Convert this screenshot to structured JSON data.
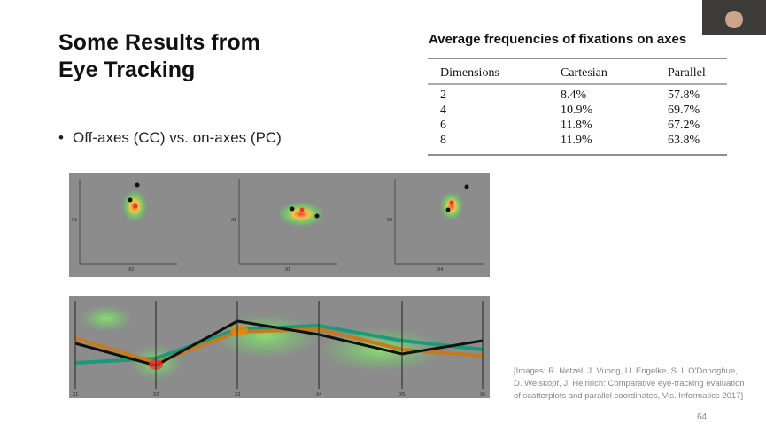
{
  "slide": {
    "title": [
      "Some Results from",
      "Eye Tracking"
    ],
    "bullets": [
      "Off-axes (CC) vs. on-axes (PC)"
    ],
    "table": {
      "caption": "Average frequencies of fixations on axes",
      "header": [
        "Dimensions",
        "Cartesian",
        "Parallel"
      ],
      "rows": [
        [
          "2",
          "8.4%",
          "57.8%"
        ],
        [
          "4",
          "10.9%",
          "69.7%"
        ],
        [
          "6",
          "11.8%",
          "67.2%"
        ],
        [
          "8",
          "11.9%",
          "63.8%"
        ]
      ]
    },
    "figure": {
      "scatter_x_labels": [
        "X2",
        "X1",
        "X4"
      ],
      "scatter_y_labels": [
        "X1",
        "X2",
        "X3"
      ],
      "parallel_axes": [
        "X1",
        "X2",
        "X3",
        "X4",
        "X5",
        "X6"
      ]
    },
    "citation": [
      "[Images: R. Netzel, J. Vuong, U. Engelke, S. I. O'Donoghue,",
      "D. Weiskopf, J. Heinrich: Comparative eye-tracking evaluation",
      "of scatterplots and parallel coordinates, Vis. Informatics 2017]"
    ],
    "page_number": "64"
  }
}
